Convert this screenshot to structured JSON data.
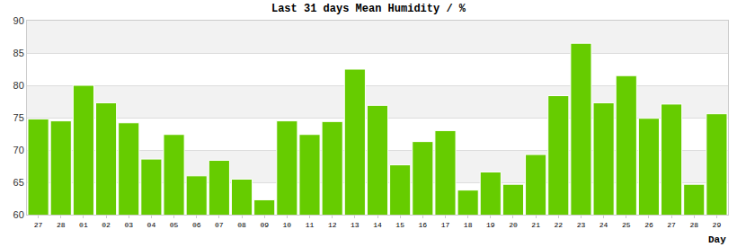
{
  "chart_data": {
    "type": "bar",
    "title": "Last 31 days Mean Humidity / %",
    "x_label": "Day",
    "categories": [
      "27",
      "28",
      "01",
      "02",
      "03",
      "04",
      "05",
      "06",
      "07",
      "08",
      "09",
      "10",
      "11",
      "12",
      "13",
      "14",
      "15",
      "16",
      "17",
      "18",
      "19",
      "20",
      "21",
      "22",
      "23",
      "24",
      "25",
      "26",
      "27",
      "28",
      "29"
    ],
    "values": [
      74.8,
      74.5,
      80,
      77.3,
      74.2,
      68.6,
      72.4,
      66,
      68.4,
      65.5,
      62.3,
      74.5,
      72.4,
      74.4,
      82.5,
      76.9,
      67.7,
      71.3,
      73,
      63.8,
      66.6,
      64.7,
      69.3,
      78.4,
      86.5,
      77.3,
      81.5,
      74.9,
      77.1,
      64.7,
      75.6
    ],
    "color": "#66cc00",
    "ylim": [
      60,
      90
    ],
    "yticks": [
      60,
      65,
      70,
      75,
      80,
      85,
      90
    ],
    "grid": true
  }
}
